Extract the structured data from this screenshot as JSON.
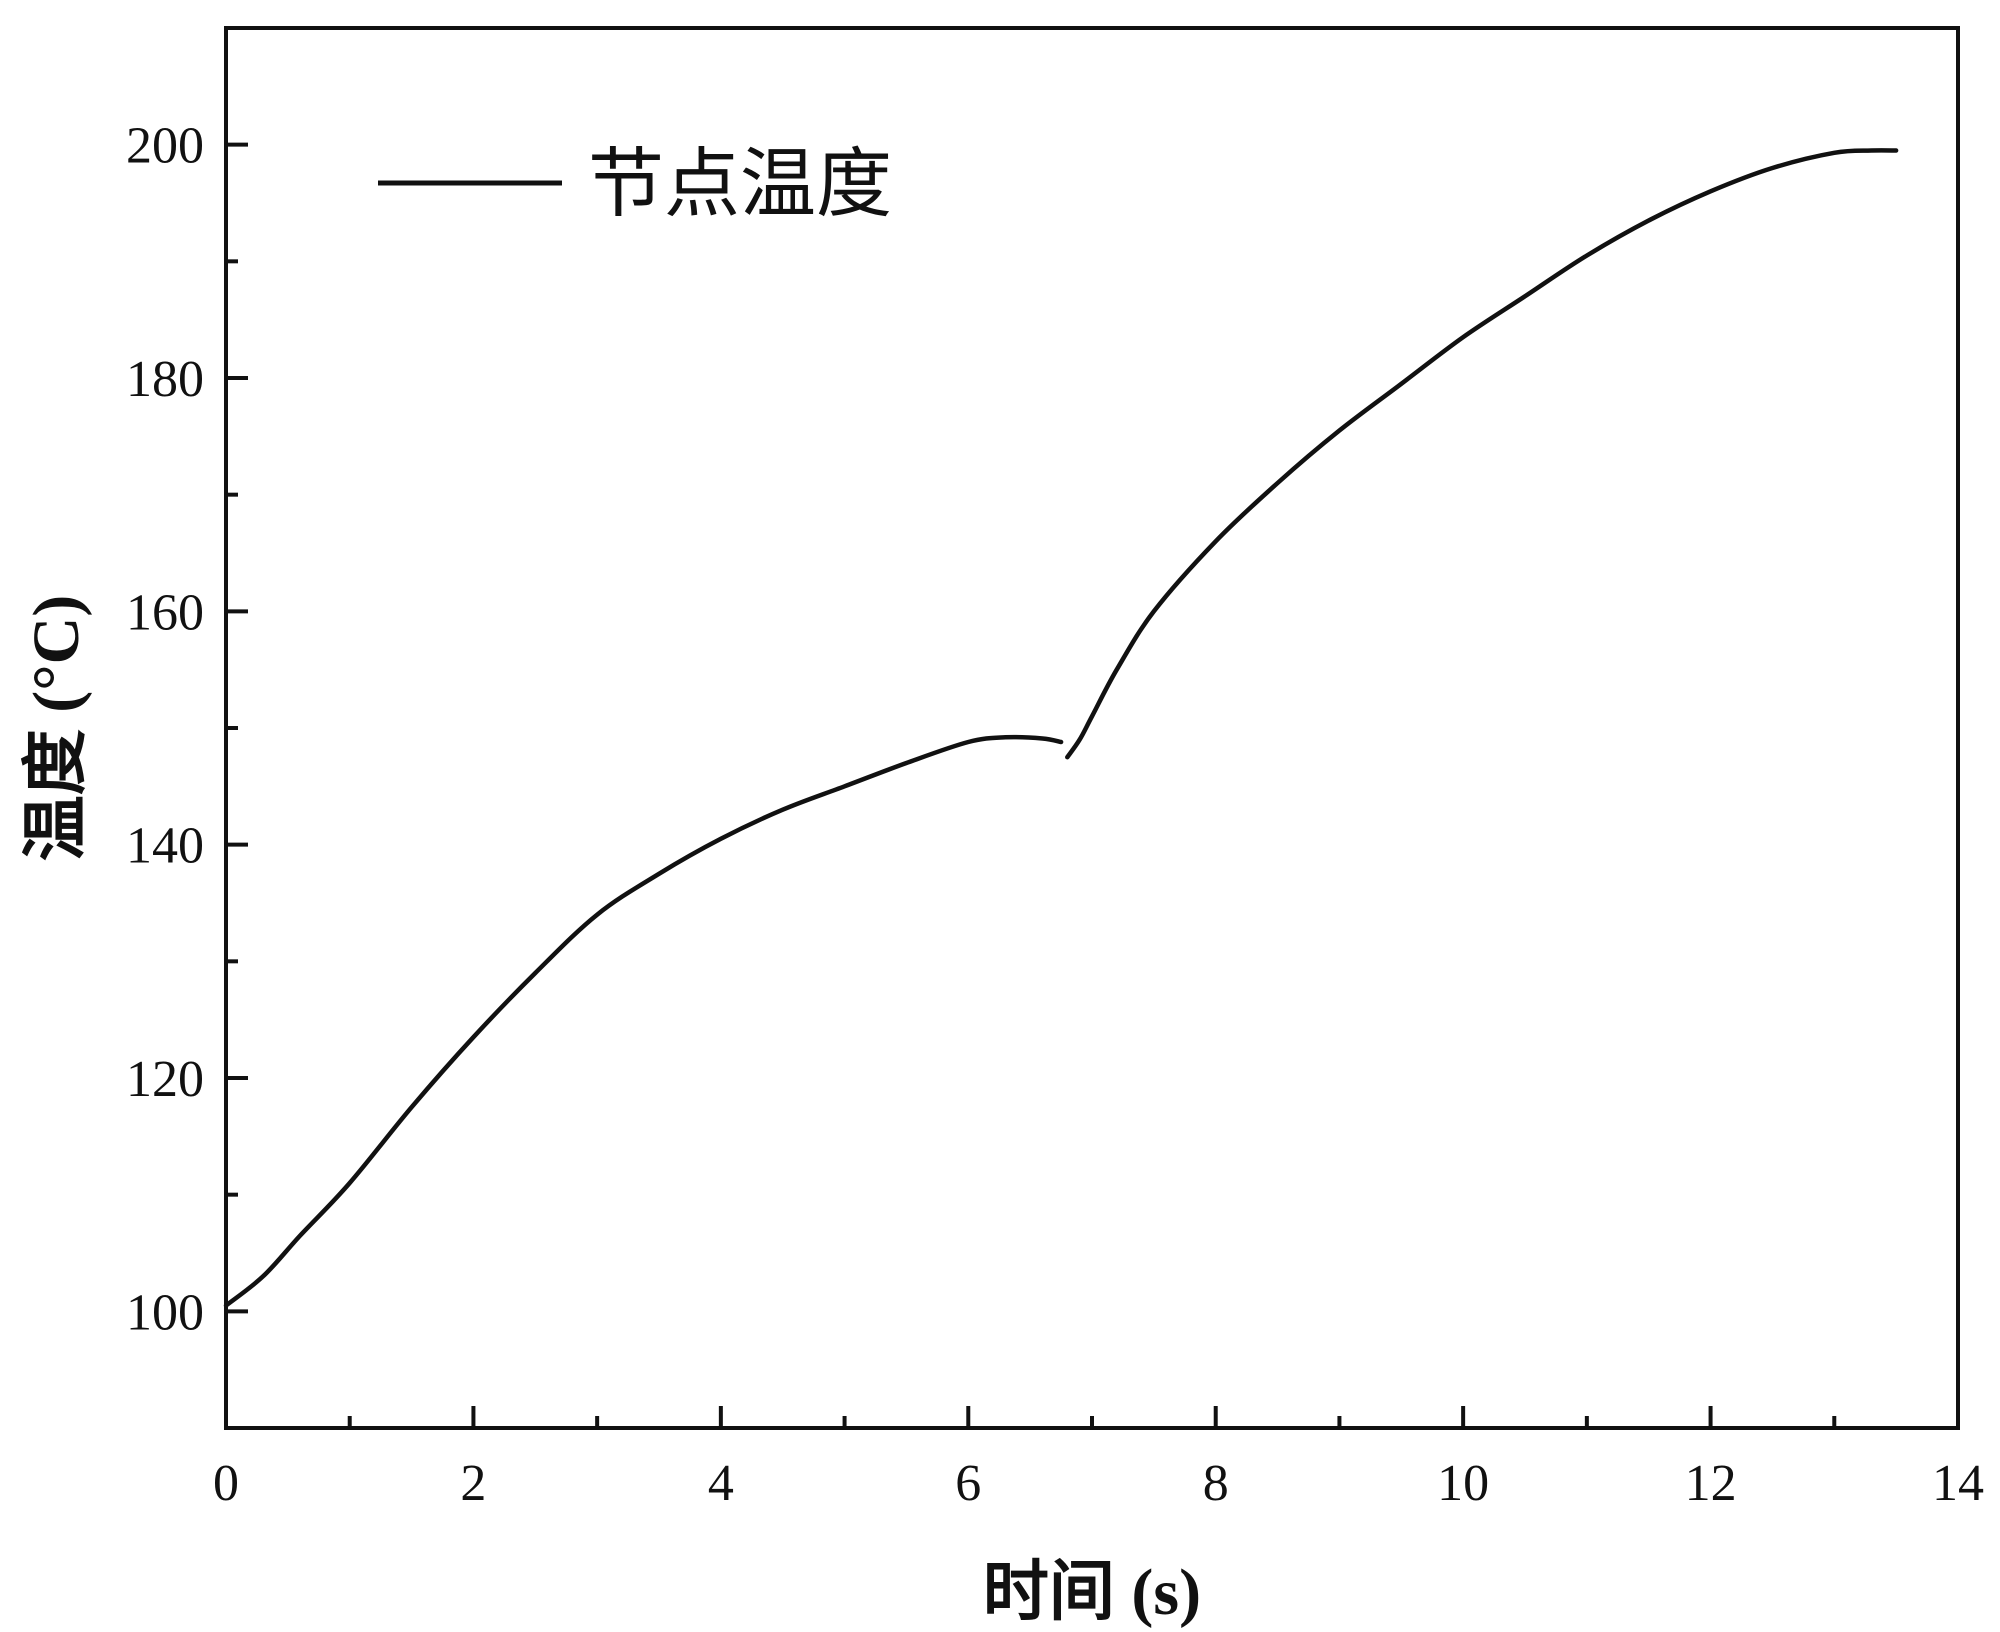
{
  "chart_data": {
    "type": "line",
    "title": "",
    "xlabel": "时间 (s)",
    "ylabel": "温度 (°C)",
    "xlim": [
      0,
      14
    ],
    "ylim": [
      90,
      210
    ],
    "x_ticks": [
      0,
      2,
      4,
      6,
      8,
      10,
      12,
      14
    ],
    "y_ticks": [
      100,
      120,
      140,
      160,
      180,
      200
    ],
    "x_tick_labels": [
      "0",
      "2",
      "4",
      "6",
      "8",
      "10",
      "12",
      "14"
    ],
    "y_tick_labels": [
      "100",
      "120",
      "140",
      "160",
      "180",
      "200"
    ],
    "x_minor_ticks": [
      1,
      3,
      5,
      7,
      9,
      11,
      13
    ],
    "y_minor_ticks": [
      110,
      130,
      150,
      170,
      190
    ],
    "grid": false,
    "legend_position": "top-left",
    "series": [
      {
        "name": "节点温度",
        "color": "#111111",
        "segments": [
          {
            "x": [
              0,
              0.3,
              0.6,
              1.0,
              1.5,
              2.0,
              2.5,
              3.0,
              3.5,
              4.0,
              4.5,
              5.0,
              5.5,
              6.0,
              6.3,
              6.6,
              6.75
            ],
            "y": [
              100.5,
              103,
              106.5,
              111,
              117.5,
              123.5,
              129,
              134,
              137.5,
              140.5,
              143,
              145,
              147,
              148.8,
              149.2,
              149.1,
              148.8
            ]
          },
          {
            "x": [
              6.8,
              6.9,
              7.0,
              7.2,
              7.5,
              8.0,
              8.5,
              9.0,
              9.5,
              10.0,
              10.5,
              11.0,
              11.5,
              12.0,
              12.5,
              13.0,
              13.3,
              13.5
            ],
            "y": [
              147.5,
              149,
              151,
              155,
              160,
              166,
              171,
              175.5,
              179.5,
              183.5,
              187,
              190.5,
              193.5,
              196,
              198,
              199.3,
              199.5,
              199.5
            ]
          }
        ]
      }
    ]
  }
}
